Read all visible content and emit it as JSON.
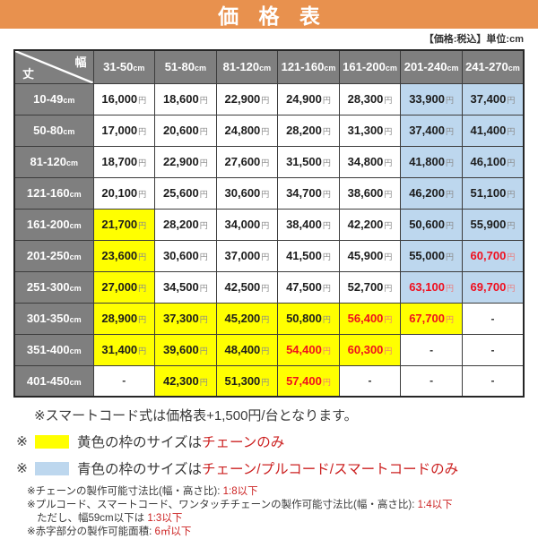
{
  "banner": {
    "title": "価 格 表"
  },
  "tax_note": "【価格:税込】単位:cm",
  "table": {
    "corner": {
      "width_label": "幅",
      "height_label": "丈"
    },
    "unit": "cm",
    "currency": "円",
    "columns": [
      "31-50",
      "51-80",
      "81-120",
      "121-160",
      "161-200",
      "201-240",
      "241-270"
    ],
    "rows": [
      {
        "label": "10-49",
        "cells": [
          {
            "v": "16,000"
          },
          {
            "v": "18,600"
          },
          {
            "v": "22,900"
          },
          {
            "v": "24,900"
          },
          {
            "v": "28,300"
          },
          {
            "v": "33,900",
            "bg": "blue"
          },
          {
            "v": "37,400",
            "bg": "blue"
          }
        ]
      },
      {
        "label": "50-80",
        "cells": [
          {
            "v": "17,000"
          },
          {
            "v": "20,600"
          },
          {
            "v": "24,800"
          },
          {
            "v": "28,200"
          },
          {
            "v": "31,300"
          },
          {
            "v": "37,400",
            "bg": "blue"
          },
          {
            "v": "41,400",
            "bg": "blue"
          }
        ]
      },
      {
        "label": "81-120",
        "cells": [
          {
            "v": "18,700"
          },
          {
            "v": "22,900"
          },
          {
            "v": "27,600"
          },
          {
            "v": "31,500"
          },
          {
            "v": "34,800"
          },
          {
            "v": "41,800",
            "bg": "blue"
          },
          {
            "v": "46,100",
            "bg": "blue"
          }
        ]
      },
      {
        "label": "121-160",
        "cells": [
          {
            "v": "20,100"
          },
          {
            "v": "25,600"
          },
          {
            "v": "30,600"
          },
          {
            "v": "34,700"
          },
          {
            "v": "38,600"
          },
          {
            "v": "46,200",
            "bg": "blue"
          },
          {
            "v": "51,100",
            "bg": "blue"
          }
        ]
      },
      {
        "label": "161-200",
        "cells": [
          {
            "v": "21,700",
            "bg": "yellow"
          },
          {
            "v": "28,200"
          },
          {
            "v": "34,000"
          },
          {
            "v": "38,400"
          },
          {
            "v": "42,200"
          },
          {
            "v": "50,600",
            "bg": "blue"
          },
          {
            "v": "55,900",
            "bg": "blue"
          }
        ]
      },
      {
        "label": "201-250",
        "cells": [
          {
            "v": "23,600",
            "bg": "yellow"
          },
          {
            "v": "30,600"
          },
          {
            "v": "37,000"
          },
          {
            "v": "41,500"
          },
          {
            "v": "45,900"
          },
          {
            "v": "55,000",
            "bg": "blue"
          },
          {
            "v": "60,700",
            "bg": "blue",
            "red": true
          }
        ]
      },
      {
        "label": "251-300",
        "cells": [
          {
            "v": "27,000",
            "bg": "yellow"
          },
          {
            "v": "34,500"
          },
          {
            "v": "42,500"
          },
          {
            "v": "47,500"
          },
          {
            "v": "52,700"
          },
          {
            "v": "63,100",
            "bg": "blue",
            "red": true
          },
          {
            "v": "69,700",
            "bg": "blue",
            "red": true
          }
        ]
      },
      {
        "label": "301-350",
        "cells": [
          {
            "v": "28,900",
            "bg": "yellow"
          },
          {
            "v": "37,300",
            "bg": "yellow"
          },
          {
            "v": "45,200",
            "bg": "yellow"
          },
          {
            "v": "50,800",
            "bg": "yellow"
          },
          {
            "v": "56,400",
            "bg": "yellow",
            "red": true
          },
          {
            "v": "67,700",
            "bg": "yellow",
            "red": true
          },
          {
            "v": "-",
            "dash": true
          }
        ]
      },
      {
        "label": "351-400",
        "cells": [
          {
            "v": "31,400",
            "bg": "yellow"
          },
          {
            "v": "39,600",
            "bg": "yellow"
          },
          {
            "v": "48,400",
            "bg": "yellow"
          },
          {
            "v": "54,400",
            "bg": "yellow",
            "red": true
          },
          {
            "v": "60,300",
            "bg": "yellow",
            "red": true
          },
          {
            "v": "-",
            "dash": true
          },
          {
            "v": "-",
            "dash": true
          }
        ]
      },
      {
        "label": "401-450",
        "cells": [
          {
            "v": "-",
            "dash": true
          },
          {
            "v": "42,300",
            "bg": "yellow"
          },
          {
            "v": "51,300",
            "bg": "yellow"
          },
          {
            "v": "57,400",
            "bg": "yellow",
            "red": true
          },
          {
            "v": "-",
            "dash": true
          },
          {
            "v": "-",
            "dash": true
          },
          {
            "v": "-",
            "dash": true
          }
        ]
      }
    ]
  },
  "notes": {
    "smart_cord": "※スマートコード式は価格表+1,500円/台となります。",
    "legend": [
      {
        "marker": "※",
        "swatch_color": "#FFFF00",
        "text": "黄色の枠のサイズは",
        "highlight": "チェーンのみ"
      },
      {
        "marker": "※",
        "swatch_color": "#BDD7EE",
        "text": "青色の枠のサイズは",
        "highlight": "チェーン/プルコード/スマートコードのみ"
      }
    ],
    "fine_print": [
      {
        "prefix": "※チェーンの製作可能寸法比(幅・高さ比): ",
        "highlight": "1:8以下",
        "indent": false
      },
      {
        "prefix": "※プルコード、スマートコード、ワンタッチチェーンの製作可能寸法比(幅・高さ比): ",
        "highlight": "1:4以下",
        "indent": false
      },
      {
        "prefix": "ただし、幅59cm以下は ",
        "highlight": "1:3以下",
        "indent": true
      },
      {
        "prefix": "※赤字部分の製作可能面積: ",
        "highlight": "6㎡以下",
        "indent": false
      }
    ]
  },
  "colors": {
    "banner_bg": "#E8914E",
    "header_bg": "#7F7F7F",
    "yellow": "#FFFF00",
    "blue": "#BDD7EE",
    "table_red": "#F00F1E",
    "note_red": "#CC2222"
  }
}
